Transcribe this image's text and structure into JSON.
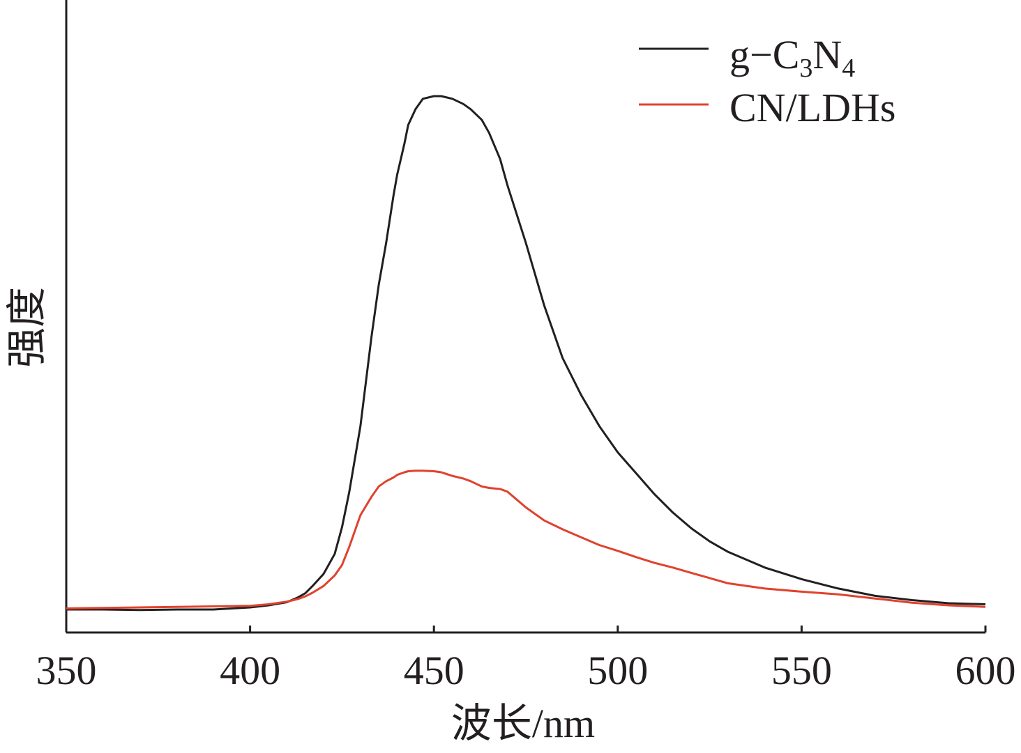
{
  "chart_data": {
    "type": "line",
    "xlabel": "波长/nm",
    "ylabel": "强度",
    "xlim": [
      350,
      600
    ],
    "ylim": [
      0,
      1
    ],
    "x_ticks": [
      "350",
      "400",
      "450",
      "500",
      "550",
      "600"
    ],
    "y_ticks": [],
    "grid": false,
    "legend": {
      "placement": "top-right"
    },
    "series": [
      {
        "name": "g-C3N4",
        "label_parts": {
          "base": "g−C",
          "sub1": "3",
          "mid": "N",
          "sub2": "4"
        },
        "color": "#231f20",
        "x": [
          350,
          360,
          370,
          380,
          390,
          400,
          405,
          410,
          413,
          415,
          417,
          420,
          423,
          425,
          427,
          430,
          433,
          435,
          437,
          439,
          440,
          442,
          443,
          445,
          447,
          450,
          452,
          455,
          458,
          460,
          463,
          465,
          468,
          470,
          475,
          480,
          485,
          490,
          495,
          500,
          505,
          510,
          515,
          520,
          525,
          530,
          540,
          550,
          560,
          570,
          580,
          590,
          600
        ],
        "y": [
          0.0,
          0.0,
          -0.001,
          0.0,
          0.0,
          0.004,
          0.008,
          0.014,
          0.023,
          0.031,
          0.045,
          0.068,
          0.106,
          0.157,
          0.225,
          0.35,
          0.52,
          0.62,
          0.7,
          0.79,
          0.83,
          0.89,
          0.925,
          0.955,
          0.975,
          0.98,
          0.98,
          0.975,
          0.965,
          0.955,
          0.935,
          0.91,
          0.86,
          0.81,
          0.7,
          0.58,
          0.48,
          0.41,
          0.35,
          0.3,
          0.26,
          0.22,
          0.185,
          0.155,
          0.13,
          0.11,
          0.08,
          0.058,
          0.04,
          0.026,
          0.018,
          0.012,
          0.01
        ]
      },
      {
        "name": "CN/LDHs",
        "color": "#e0422e",
        "x": [
          350,
          360,
          370,
          380,
          390,
          400,
          405,
          410,
          413,
          415,
          417,
          420,
          423,
          425,
          427,
          430,
          433,
          435,
          437,
          439,
          440,
          442,
          443,
          445,
          447,
          450,
          452,
          455,
          458,
          460,
          463,
          465,
          468,
          470,
          475,
          480,
          485,
          490,
          495,
          500,
          505,
          510,
          515,
          520,
          525,
          530,
          540,
          550,
          560,
          570,
          580,
          590,
          600
        ],
        "y": [
          0.002,
          0.003,
          0.004,
          0.005,
          0.006,
          0.007,
          0.01,
          0.015,
          0.02,
          0.025,
          0.032,
          0.045,
          0.065,
          0.085,
          0.12,
          0.18,
          0.215,
          0.235,
          0.245,
          0.252,
          0.257,
          0.262,
          0.264,
          0.265,
          0.265,
          0.264,
          0.262,
          0.255,
          0.25,
          0.245,
          0.235,
          0.232,
          0.23,
          0.225,
          0.195,
          0.17,
          0.153,
          0.138,
          0.123,
          0.112,
          0.1,
          0.089,
          0.08,
          0.07,
          0.06,
          0.05,
          0.04,
          0.034,
          0.029,
          0.021,
          0.013,
          0.008,
          0.005
        ]
      }
    ]
  }
}
